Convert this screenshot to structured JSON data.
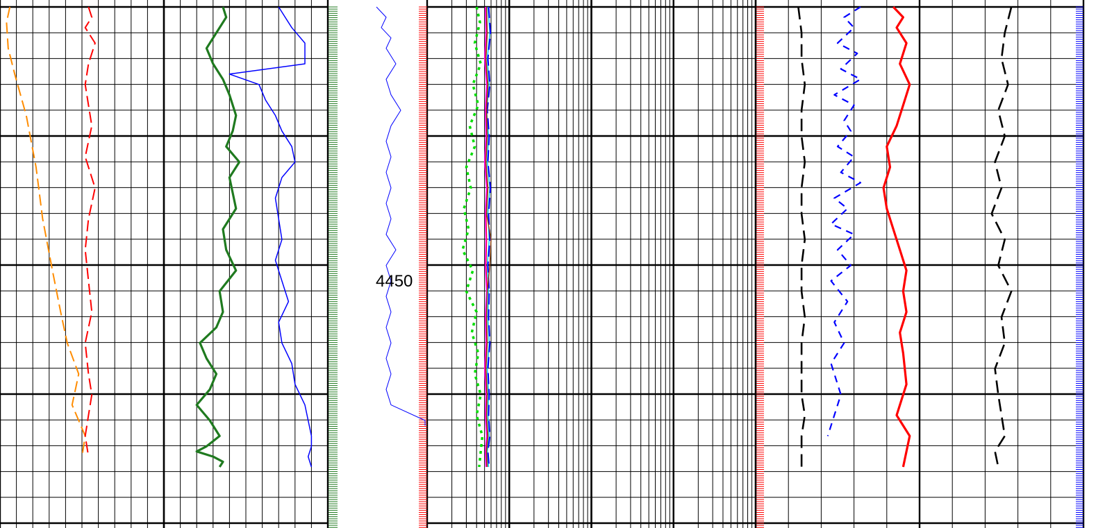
{
  "chart_data": [
    {
      "type": "line",
      "title": "",
      "track": "track-1",
      "xlabel": "",
      "ylabel": "",
      "grid": true,
      "y_major_depths": [
        4450
      ],
      "series": [
        {
          "color": "#ff8c00",
          "style": "dashed",
          "x": [
            0.3,
            0.2,
            0.25,
            0.45,
            0.8,
            1.1,
            1.3,
            1.6,
            1.85,
            2.05,
            2.4,
            2.3,
            2.2,
            2.4,
            2.6,
            2.5
          ],
          "y": [
            4397,
            4400,
            4405,
            4410,
            4418,
            4428,
            4438,
            4448,
            4456,
            4462,
            4468,
            4471,
            4474,
            4477,
            4480,
            4484
          ]
        },
        {
          "color": "#ff0000",
          "style": "dashed",
          "x": [
            2.7,
            2.8,
            2.6,
            2.9,
            2.7,
            2.6,
            2.7,
            2.8,
            2.6,
            2.9,
            2.7,
            2.6,
            2.7,
            2.8,
            2.6,
            2.7,
            2.8,
            2.7,
            2.6,
            2.7
          ],
          "y": [
            4397,
            4399,
            4401,
            4404,
            4408,
            4412,
            4416,
            4420,
            4426,
            4432,
            4438,
            4444,
            4450,
            4456,
            4462,
            4468,
            4472,
            4476,
            4480,
            4484
          ]
        }
      ]
    },
    {
      "type": "line",
      "title": "",
      "track": "track-2",
      "xlabel": "",
      "ylabel": "",
      "grid": true,
      "series": [
        {
          "color": "#1f7a1f",
          "style": "solid-thick",
          "x": [
            6.8,
            6.9,
            6.6,
            6.3,
            6.5,
            6.8,
            7.0,
            7.2,
            7.1,
            6.9,
            7.3,
            7.0,
            7.1,
            7.2,
            6.8,
            6.9,
            7.2,
            6.7,
            6.8,
            6.6,
            6.1,
            6.3,
            6.6,
            6.4,
            6.0,
            6.4,
            6.7,
            6.3,
            6.0,
            6.5,
            6.8,
            6.7
          ],
          "y": [
            4397,
            4399,
            4402,
            4405,
            4408,
            4411,
            4414,
            4418,
            4421,
            4424,
            4427,
            4430,
            4433,
            4436,
            4440,
            4444,
            4448,
            4452,
            4456,
            4459,
            4462,
            4465,
            4468,
            4471,
            4474,
            4477,
            4480,
            4482,
            4483,
            4484,
            4485,
            4486
          ]
        },
        {
          "color": "#0000ff",
          "style": "solid",
          "x": [
            8.5,
            8.7,
            8.9,
            9.3,
            9.3,
            7.0,
            7.9,
            8.1,
            8.4,
            8.6,
            8.9,
            9.0,
            8.6,
            8.4,
            8.5,
            8.6,
            8.4,
            8.6,
            8.8,
            8.5,
            8.6,
            8.9,
            9.0,
            9.3,
            9.4,
            9.5,
            9.5,
            9.4,
            9.5
          ],
          "y": [
            4397,
            4399,
            4401,
            4404,
            4408,
            4410,
            4412,
            4415,
            4418,
            4421,
            4424,
            4427,
            4430,
            4434,
            4438,
            4442,
            4446,
            4450,
            4454,
            4458,
            4462,
            4466,
            4470,
            4474,
            4477,
            4480,
            4482,
            4484,
            4486
          ]
        }
      ]
    },
    {
      "type": "line",
      "title": "",
      "track": "depth",
      "xlabel": "",
      "ylabel": "",
      "grid": false,
      "depth_labels": [
        "4450"
      ],
      "series": [
        {
          "color": "#0000ff",
          "style": "solid-thin",
          "x": [
            0.0,
            0.2,
            0.1,
            0.3,
            0.2,
            0.4,
            0.2,
            0.3,
            0.5,
            0.3,
            0.2,
            0.3,
            0.2,
            0.3,
            0.2,
            0.3,
            0.2,
            0.4,
            0.2,
            0.3,
            0.2,
            0.3,
            0.2,
            0.3,
            0.2,
            0.3,
            0.2,
            0.3,
            1.0,
            1.0
          ],
          "y": [
            4397,
            4399,
            4401,
            4403,
            4405,
            4408,
            4411,
            4414,
            4417,
            4420,
            4423,
            4426,
            4429,
            4432,
            4435,
            4438,
            4441,
            4444,
            4447,
            4450,
            4453,
            4456,
            4459,
            4462,
            4465,
            4468,
            4471,
            4474,
            4477,
            4478
          ]
        }
      ]
    },
    {
      "type": "line",
      "title": "",
      "track": "resistivity-log",
      "xlabel": "",
      "ylabel": "",
      "grid": true,
      "scale": "log",
      "series": [
        {
          "color": "#00dd00",
          "style": "dotted-thick",
          "x": [
            0.4,
            0.44,
            0.38,
            0.45,
            0.36,
            0.42,
            0.33,
            0.38,
            0.3,
            0.34,
            0.28,
            0.32,
            0.27,
            0.36,
            0.3,
            0.4,
            0.35,
            0.42,
            0.38,
            0.45,
            0.4,
            0.47,
            0.43
          ],
          "y": [
            4397,
            4400,
            4404,
            4408,
            4412,
            4416,
            4420,
            4424,
            4428,
            4432,
            4436,
            4440,
            4444,
            4448,
            4452,
            4456,
            4460,
            4464,
            4468,
            4472,
            4476,
            4480,
            4486
          ]
        },
        {
          "color": "#00ccff",
          "style": "solid",
          "x": [
            0.55,
            0.58,
            0.54,
            0.57,
            0.53,
            0.56,
            0.54,
            0.58,
            0.55,
            0.57,
            0.54,
            0.56,
            0.55,
            0.57,
            0.54,
            0.56,
            0.55,
            0.57,
            0.54,
            0.56
          ],
          "y": [
            4397,
            4402,
            4407,
            4412,
            4417,
            4422,
            4427,
            4432,
            4437,
            4442,
            4447,
            4452,
            4457,
            4462,
            4467,
            4472,
            4476,
            4480,
            4483,
            4486
          ]
        },
        {
          "color": "#0000ff",
          "style": "dashed",
          "x": [
            0.56,
            0.59,
            0.55,
            0.58,
            0.54,
            0.57,
            0.55,
            0.59,
            0.56,
            0.58,
            0.55,
            0.57,
            0.56,
            0.58,
            0.55,
            0.57,
            0.56,
            0.58,
            0.55,
            0.57
          ],
          "y": [
            4397,
            4402,
            4407,
            4412,
            4417,
            4422,
            4427,
            4432,
            4437,
            4442,
            4447,
            4452,
            4457,
            4462,
            4467,
            4472,
            4476,
            4480,
            4483,
            4486
          ]
        },
        {
          "color": "#ff0000",
          "style": "solid",
          "x": [
            0.52,
            0.53,
            0.51,
            0.54,
            0.52,
            0.53,
            0.51,
            0.54,
            0.52,
            0.53,
            0.52,
            0.54,
            0.52,
            0.53,
            0.51,
            0.53,
            0.52,
            0.54,
            0.52,
            0.53
          ],
          "y": [
            4397,
            4402,
            4407,
            4412,
            4417,
            4422,
            4427,
            4432,
            4437,
            4442,
            4447,
            4452,
            4457,
            4462,
            4467,
            4472,
            4476,
            4480,
            4483,
            4486
          ]
        },
        {
          "color": "#ff00ff",
          "style": "solid",
          "x": [
            0.51,
            0.52,
            0.5,
            0.53,
            0.51,
            0.52,
            0.5,
            0.53,
            0.51,
            0.52,
            0.51,
            0.53,
            0.51,
            0.52,
            0.5,
            0.52,
            0.51,
            0.53,
            0.51,
            0.52
          ],
          "y": [
            4397,
            4402,
            4407,
            4412,
            4417,
            4422,
            4427,
            4432,
            4437,
            4442,
            4447,
            4452,
            4457,
            4462,
            4467,
            4472,
            4476,
            4480,
            4483,
            4486
          ]
        },
        {
          "color": "#8b4513",
          "style": "solid",
          "x": [
            0.53,
            0.54,
            0.52,
            0.55,
            0.53,
            0.54,
            0.52,
            0.55,
            0.53,
            0.6,
            0.58,
            0.54,
            0.53,
            0.54,
            0.52,
            0.54,
            0.53,
            0.55,
            0.53,
            0.54
          ],
          "y": [
            4397,
            4402,
            4407,
            4412,
            4417,
            4422,
            4427,
            4432,
            4437,
            4442,
            4447,
            4452,
            4457,
            4462,
            4467,
            4472,
            4476,
            4480,
            4483,
            4486
          ]
        }
      ]
    },
    {
      "type": "line",
      "title": "",
      "track": "track-5",
      "xlabel": "",
      "ylabel": "",
      "grid": true,
      "series": [
        {
          "color": "#000000",
          "style": "dashed-thick",
          "x": [
            1.3,
            1.4,
            1.4,
            1.5,
            1.4,
            1.4,
            1.5,
            1.4,
            1.4,
            1.5,
            1.4,
            1.4,
            1.5,
            1.4,
            1.4,
            1.4,
            1.5,
            1.4,
            1.4,
            1.4
          ],
          "y": [
            4397,
            4402,
            4407,
            4412,
            4417,
            4422,
            4427,
            4432,
            4437,
            4442,
            4447,
            4452,
            4457,
            4462,
            4467,
            4472,
            4476,
            4480,
            4483,
            4486
          ]
        },
        {
          "color": "#0000ff",
          "style": "ticks",
          "x": [
            3.2,
            2.7,
            3.0,
            2.5,
            3.1,
            2.6,
            3.2,
            2.4,
            3.0,
            2.7,
            2.9,
            2.5,
            3.0,
            2.6,
            3.2,
            2.4,
            2.8,
            2.3,
            3.0,
            2.5,
            2.9,
            2.3,
            2.8,
            2.4,
            2.7,
            2.3,
            2.6,
            2.2
          ],
          "y": [
            4397,
            4399,
            4401,
            4404,
            4406,
            4409,
            4411,
            4414,
            4416,
            4419,
            4421,
            4424,
            4426,
            4429,
            4431,
            4434,
            4436,
            4439,
            4441,
            4444,
            4447,
            4450,
            4454,
            4458,
            4462,
            4466,
            4472,
            4480
          ]
        },
        {
          "color": "#ff0000",
          "style": "solid-thick",
          "x": [
            4.2,
            4.5,
            4.3,
            4.6,
            4.4,
            4.7,
            4.5,
            4.3,
            4.0,
            4.1,
            3.9,
            4.0,
            4.2,
            4.4,
            4.6,
            4.5,
            4.6,
            4.4,
            4.5,
            4.6,
            4.3,
            4.7,
            4.5
          ],
          "y": [
            4397,
            4399,
            4401,
            4404,
            4408,
            4412,
            4416,
            4420,
            4424,
            4428,
            4432,
            4436,
            4440,
            4444,
            4448,
            4452,
            4456,
            4460,
            4464,
            4470,
            4476,
            4480,
            4486
          ]
        },
        {
          "color": "#000000",
          "style": "dashed-thick",
          "x": [
            7.8,
            7.6,
            7.5,
            7.7,
            7.4,
            7.6,
            7.3,
            7.5,
            7.2,
            7.6,
            7.4,
            7.8,
            7.5,
            7.6,
            7.3,
            7.4,
            7.5,
            7.6,
            7.3,
            7.4
          ],
          "y": [
            4397,
            4402,
            4407,
            4412,
            4417,
            4422,
            4427,
            4432,
            4437,
            4442,
            4447,
            4452,
            4457,
            4462,
            4467,
            4472,
            4476,
            4480,
            4483,
            4486
          ]
        }
      ]
    }
  ]
}
